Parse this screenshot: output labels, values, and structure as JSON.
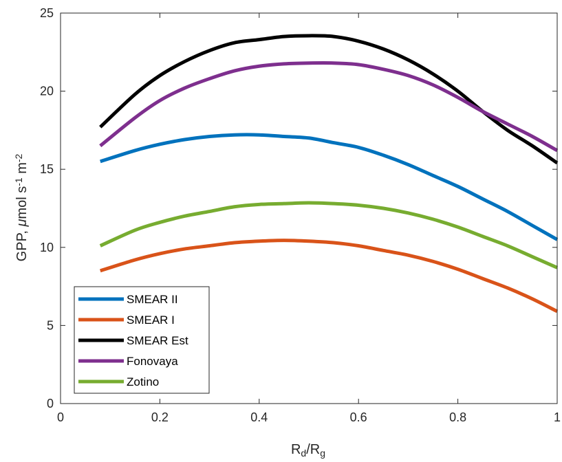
{
  "chart_data": {
    "type": "line",
    "title": "",
    "xlabel": {
      "base": "R",
      "sub1": "d",
      "slash": "/",
      "base2": "R",
      "sub2": "g"
    },
    "ylabel": {
      "text1": "GPP, ",
      "mu": "μ",
      "text2": "mol s",
      "sup1": "-1",
      "text3": " m",
      "sup2": "-2"
    },
    "xlim": [
      0,
      1
    ],
    "ylim": [
      0,
      25
    ],
    "xticks": [
      0,
      0.2,
      0.4,
      0.6,
      0.8,
      1
    ],
    "xtick_labels": [
      "0",
      "0.2",
      "0.4",
      "0.6",
      "0.8",
      "1"
    ],
    "yticks": [
      0,
      5,
      10,
      15,
      20,
      25
    ],
    "ytick_labels": [
      "0",
      "5",
      "10",
      "15",
      "20",
      "25"
    ],
    "grid": false,
    "legend_position": "bottom-left",
    "x": [
      0.08,
      0.15,
      0.2,
      0.25,
      0.3,
      0.35,
      0.4,
      0.45,
      0.5,
      0.55,
      0.6,
      0.65,
      0.7,
      0.75,
      0.8,
      0.85,
      0.9,
      0.95,
      1.0
    ],
    "series": [
      {
        "name": "SMEAR II",
        "color": "#0072BD",
        "values": [
          15.5,
          16.2,
          16.6,
          16.9,
          17.1,
          17.2,
          17.2,
          17.1,
          17.0,
          16.7,
          16.4,
          15.9,
          15.3,
          14.6,
          13.9,
          13.1,
          12.3,
          11.4,
          10.5
        ]
      },
      {
        "name": "SMEAR I",
        "color": "#D95319",
        "values": [
          8.5,
          9.2,
          9.6,
          9.9,
          10.1,
          10.3,
          10.4,
          10.45,
          10.4,
          10.3,
          10.1,
          9.8,
          9.5,
          9.1,
          8.6,
          8.0,
          7.4,
          6.7,
          5.9
        ]
      },
      {
        "name": "SMEAR Est",
        "color": "#000000",
        "values": [
          17.7,
          19.8,
          21.0,
          21.9,
          22.6,
          23.1,
          23.3,
          23.5,
          23.55,
          23.5,
          23.2,
          22.7,
          22.0,
          21.1,
          20.0,
          18.7,
          17.5,
          16.5,
          15.4
        ]
      },
      {
        "name": "Fonovaya",
        "color": "#7E2F8E",
        "values": [
          16.5,
          18.3,
          19.4,
          20.2,
          20.8,
          21.3,
          21.6,
          21.75,
          21.8,
          21.8,
          21.7,
          21.4,
          21.0,
          20.4,
          19.6,
          18.7,
          17.9,
          17.1,
          16.2
        ]
      },
      {
        "name": "Zotino",
        "color": "#77AC30",
        "values": [
          10.1,
          11.1,
          11.6,
          12.0,
          12.3,
          12.6,
          12.75,
          12.8,
          12.85,
          12.8,
          12.7,
          12.5,
          12.2,
          11.8,
          11.3,
          10.7,
          10.1,
          9.4,
          8.7
        ]
      }
    ]
  }
}
